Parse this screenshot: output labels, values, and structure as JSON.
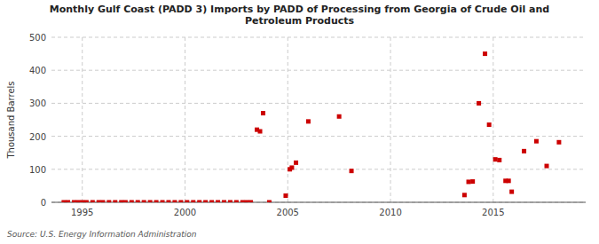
{
  "chart_data": {
    "type": "scatter",
    "title": "Monthly Gulf Coast (PADD 3) Imports by PADD of Processing from Georgia of Crude Oil and\nPetroleum Products",
    "ylabel": "Thousand Barrels",
    "source": "Source: U.S. Energy Information Administration",
    "color": "#cc0000",
    "marker": "square",
    "grid": true,
    "xlim": [
      1993.5,
      2019.5
    ],
    "ylim": [
      0,
      500
    ],
    "xticks": [
      1995,
      2000,
      2005,
      2010,
      2015
    ],
    "yticks": [
      0,
      100,
      200,
      300,
      400,
      500
    ],
    "x": [
      1994.1,
      1994.3,
      1994.6,
      1994.8,
      1995.0,
      1995.2,
      1995.5,
      1995.8,
      1996.0,
      1996.3,
      1996.6,
      1996.9,
      1997.1,
      1997.4,
      1997.7,
      1998.0,
      1998.3,
      1998.6,
      1998.9,
      1999.2,
      1999.5,
      1999.8,
      2000.1,
      2000.4,
      2000.7,
      2001.0,
      2001.3,
      2001.6,
      2001.9,
      2002.2,
      2002.5,
      2002.8,
      2003.0,
      2003.2,
      2004.1,
      2003.5,
      2003.65,
      2003.8,
      2004.9,
      2005.1,
      2005.2,
      2005.4,
      2006.0,
      2007.5,
      2008.1,
      2013.6,
      2013.8,
      2014.0,
      2014.3,
      2014.6,
      2014.8,
      2015.1,
      2015.3,
      2015.6,
      2015.75,
      2015.9,
      2016.5,
      2017.1,
      2017.6,
      2018.2
    ],
    "values": [
      0,
      0,
      0,
      0,
      0,
      0,
      0,
      0,
      0,
      0,
      0,
      0,
      0,
      0,
      0,
      0,
      0,
      0,
      0,
      0,
      0,
      0,
      0,
      0,
      0,
      0,
      0,
      0,
      0,
      0,
      0,
      0,
      0,
      0,
      0,
      220,
      215,
      270,
      20,
      100,
      105,
      120,
      245,
      260,
      95,
      22,
      62,
      63,
      300,
      450,
      235,
      130,
      128,
      65,
      65,
      32,
      155,
      185,
      110,
      182
    ]
  }
}
